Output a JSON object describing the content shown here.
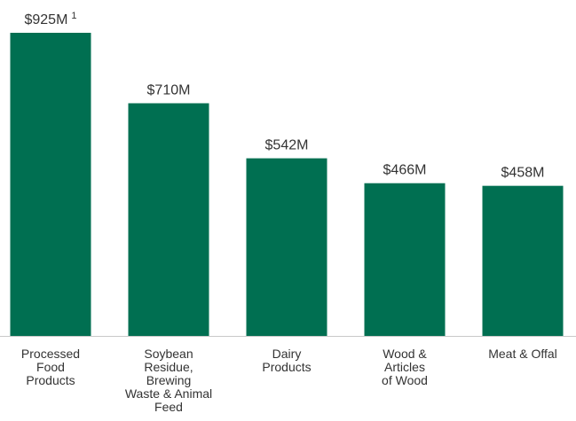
{
  "chart_data": {
    "type": "bar",
    "categories": [
      [
        "Processed",
        "Food",
        "Products"
      ],
      [
        "Soybean",
        "Residue,",
        "Brewing",
        "Waste & Animal",
        "Feed"
      ],
      [
        "Dairy",
        "Products"
      ],
      [
        "Wood &",
        "Articles",
        "of Wood"
      ],
      [
        "Meat & Offal"
      ]
    ],
    "values": [
      925,
      710,
      542,
      466,
      458
    ],
    "value_labels": [
      "$925M",
      "$710M",
      "$542M",
      "$466M",
      "$458M"
    ],
    "value_footnotes": [
      "1",
      "",
      "",
      "",
      ""
    ],
    "ylim": [
      0,
      925
    ],
    "bar_color": "#006f51",
    "axis_color": "#c8c8c8",
    "grid": false,
    "legend": "none",
    "title": "",
    "xlabel": "",
    "ylabel": ""
  }
}
